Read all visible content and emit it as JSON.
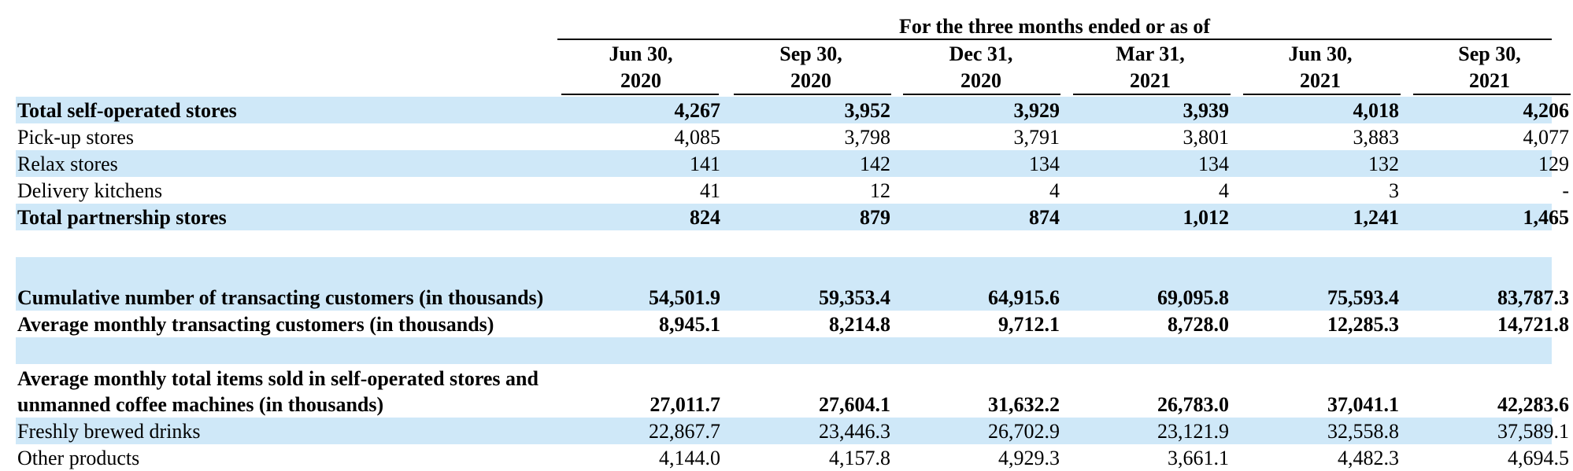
{
  "header": {
    "title": "For the three months ended or as of",
    "columns": [
      {
        "line1": "Jun 30,",
        "line2": "2020"
      },
      {
        "line1": "Sep 30,",
        "line2": "2020"
      },
      {
        "line1": "Dec 31,",
        "line2": "2020"
      },
      {
        "line1": "Mar 31,",
        "line2": "2021"
      },
      {
        "line1": "Jun 30,",
        "line2": "2021"
      },
      {
        "line1": "Sep 30,",
        "line2": "2021"
      }
    ]
  },
  "rows": [
    {
      "label": "Total self-operated stores",
      "bold": true,
      "shaded": true,
      "values": [
        "4,267",
        "3,952",
        "3,929",
        "3,939",
        "4,018",
        "4,206"
      ]
    },
    {
      "label": "Pick-up stores",
      "bold": false,
      "shaded": false,
      "values": [
        "4,085",
        "3,798",
        "3,791",
        "3,801",
        "3,883",
        "4,077"
      ]
    },
    {
      "label": "Relax stores",
      "bold": false,
      "shaded": true,
      "values": [
        "141",
        "142",
        "134",
        "134",
        "132",
        "129"
      ]
    },
    {
      "label": "Delivery kitchens",
      "bold": false,
      "shaded": false,
      "values": [
        "41",
        "12",
        "4",
        "4",
        "3",
        "-"
      ]
    },
    {
      "label": "Total partnership stores",
      "bold": true,
      "shaded": true,
      "values": [
        "824",
        "879",
        "874",
        "1,012",
        "1,241",
        "1,465"
      ]
    },
    {
      "label": "",
      "bold": false,
      "shaded": false,
      "values": [
        "",
        "",
        "",
        "",
        "",
        ""
      ]
    },
    {
      "label": "Cumulative number of transacting customers (in thousands)",
      "bold": true,
      "shaded": true,
      "values": [
        "54,501.9",
        "59,353.4",
        "64,915.6",
        "69,095.8",
        "75,593.4",
        "83,787.3"
      ]
    },
    {
      "label": "Average monthly transacting customers (in thousands)",
      "bold": true,
      "shaded": false,
      "values": [
        "8,945.1",
        "8,214.8",
        "9,712.1",
        "8,728.0",
        "12,285.3",
        "14,721.8"
      ]
    },
    {
      "label": "",
      "bold": false,
      "shaded": true,
      "values": [
        "",
        "",
        "",
        "",
        "",
        ""
      ]
    },
    {
      "label": "Average monthly total items sold in self-operated stores and unmanned coffee machines (in thousands)",
      "bold": true,
      "shaded": false,
      "values": [
        "27,011.7",
        "27,604.1",
        "31,632.2",
        "26,783.0",
        "37,041.1",
        "42,283.6"
      ]
    },
    {
      "label": "Freshly brewed drinks",
      "bold": false,
      "shaded": true,
      "values": [
        "22,867.7",
        "23,446.3",
        "26,702.9",
        "23,121.9",
        "32,558.8",
        "37,589.1"
      ]
    },
    {
      "label": "Other products",
      "bold": false,
      "shaded": false,
      "values": [
        "4,144.0",
        "4,157.8",
        "4,929.3",
        "3,661.1",
        "4,482.3",
        "4,694.5"
      ]
    }
  ]
}
